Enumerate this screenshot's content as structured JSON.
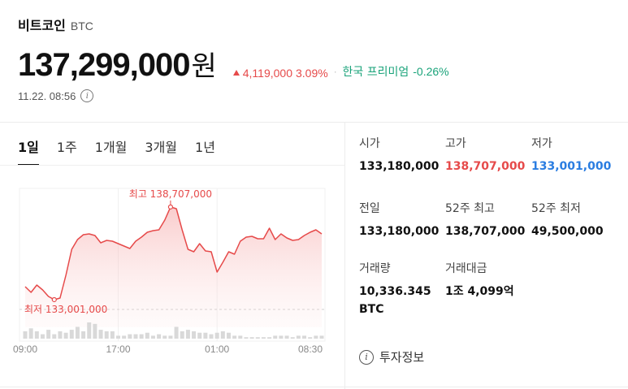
{
  "header": {
    "coin_name": "비트코인",
    "ticker": "BTC",
    "price": "137,299,000",
    "price_unit": "원",
    "change_amount": "4,119,000",
    "change_percent": "3.09%",
    "change_direction": "up",
    "premium_label": "한국 프리미엄",
    "premium_value": "-0.26%",
    "timestamp": "11.22. 08:56",
    "info_icon": "info-icon"
  },
  "colors": {
    "up": "#e64a4a",
    "down": "#2a7de1",
    "premium": "#1aa37a"
  },
  "tabs": [
    {
      "label": "1일",
      "active": true
    },
    {
      "label": "1주",
      "active": false
    },
    {
      "label": "1개월",
      "active": false
    },
    {
      "label": "3개월",
      "active": false
    },
    {
      "label": "1년",
      "active": false
    }
  ],
  "chart_data": {
    "type": "line",
    "x_ticks": [
      "09:00",
      "17:00",
      "01:00",
      "08:30"
    ],
    "high_label": "최고 138,707,000",
    "low_label": "최저 133,001,000",
    "high_value": 138707000,
    "low_value": 133001000,
    "ylim": [
      132200000,
      139700000
    ],
    "values": [
      133800000,
      133450000,
      133900000,
      133600000,
      133200000,
      133001000,
      133100000,
      134500000,
      136100000,
      136700000,
      137000000,
      137050000,
      136950000,
      136500000,
      136650000,
      136600000,
      136450000,
      136300000,
      136150000,
      136600000,
      136850000,
      137150000,
      137250000,
      137300000,
      137900000,
      138707000,
      138600000,
      137300000,
      136100000,
      135950000,
      136450000,
      136000000,
      135950000,
      134700000,
      135300000,
      135950000,
      135800000,
      136600000,
      136850000,
      136900000,
      136750000,
      136750000,
      137400000,
      136700000,
      137050000,
      136800000,
      136650000,
      136700000,
      136950000,
      137150000,
      137300000,
      137050000
    ],
    "volume": [
      5,
      7,
      5,
      3,
      6,
      3,
      5,
      4,
      6,
      8,
      5,
      11,
      10,
      6,
      5,
      5,
      2,
      2,
      3,
      3,
      3,
      4,
      2,
      3,
      2,
      2,
      8,
      5,
      6,
      5,
      4,
      4,
      3,
      4,
      5,
      4,
      2,
      2,
      1,
      1,
      1,
      1,
      1,
      2,
      2,
      2,
      1,
      2,
      2,
      1,
      2,
      2
    ],
    "grid": true
  },
  "stats": {
    "open_label": "시가",
    "open_value": "133,180,000",
    "high_label": "고가",
    "high_value": "138,707,000",
    "low_label": "저가",
    "low_value": "133,001,000",
    "prev_label": "전일",
    "prev_value": "133,180,000",
    "week52_high_label": "52주 최고",
    "week52_high_value": "138,707,000",
    "week52_low_label": "52주 최저",
    "week52_low_value": "49,500,000",
    "volume_label": "거래량",
    "volume_value": "10,336.345 BTC",
    "amount_label": "거래대금",
    "amount_value": "1조 4,099억"
  },
  "footer": {
    "invest_info_label": "투자정보"
  }
}
